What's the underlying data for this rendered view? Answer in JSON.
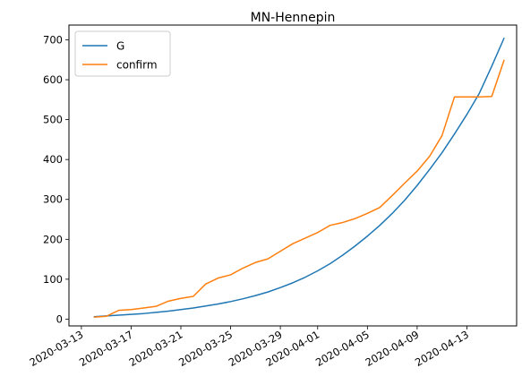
{
  "chart_data": {
    "type": "line",
    "title": "MN-Hennepin",
    "xlabel": "",
    "ylabel": "",
    "x_type": "date",
    "xlim": [
      "2020-03-12",
      "2020-04-17"
    ],
    "ylim": [
      -17,
      737
    ],
    "x_ticks": [
      "2020-03-13",
      "2020-03-17",
      "2020-03-21",
      "2020-03-25",
      "2020-03-29",
      "2020-04-01",
      "2020-04-05",
      "2020-04-09",
      "2020-04-13"
    ],
    "y_ticks": [
      0,
      100,
      200,
      300,
      400,
      500,
      600,
      700
    ],
    "grid": false,
    "legend": {
      "position": "top-left"
    },
    "series": [
      {
        "name": "G",
        "color": "#1f77b4",
        "x": [
          "2020-03-14",
          "2020-03-15",
          "2020-03-16",
          "2020-03-17",
          "2020-03-18",
          "2020-03-19",
          "2020-03-20",
          "2020-03-21",
          "2020-03-22",
          "2020-03-23",
          "2020-03-24",
          "2020-03-25",
          "2020-03-26",
          "2020-03-27",
          "2020-03-28",
          "2020-03-29",
          "2020-03-30",
          "2020-03-31",
          "2020-04-01",
          "2020-04-02",
          "2020-04-03",
          "2020-04-04",
          "2020-04-05",
          "2020-04-06",
          "2020-04-07",
          "2020-04-08",
          "2020-04-09",
          "2020-04-10",
          "2020-04-11",
          "2020-04-12",
          "2020-04-13",
          "2020-04-14",
          "2020-04-15",
          "2020-04-16"
        ],
        "values": [
          6,
          8,
          10,
          12,
          14,
          17,
          20,
          24,
          28,
          33,
          38,
          44,
          51,
          59,
          68,
          79,
          91,
          105,
          121,
          139,
          160,
          183,
          208,
          235,
          265,
          298,
          335,
          375,
          417,
          464,
          513,
          566,
          634,
          705
        ]
      },
      {
        "name": "confirm",
        "color": "#ff7f0e",
        "x": [
          "2020-03-14",
          "2020-03-15",
          "2020-03-16",
          "2020-03-17",
          "2020-03-18",
          "2020-03-19",
          "2020-03-20",
          "2020-03-21",
          "2020-03-22",
          "2020-03-23",
          "2020-03-24",
          "2020-03-25",
          "2020-03-26",
          "2020-03-27",
          "2020-03-28",
          "2020-03-29",
          "2020-03-30",
          "2020-03-31",
          "2020-04-01",
          "2020-04-02",
          "2020-04-03",
          "2020-04-04",
          "2020-04-05",
          "2020-04-06",
          "2020-04-07",
          "2020-04-08",
          "2020-04-09",
          "2020-04-10",
          "2020-04-11",
          "2020-04-12",
          "2020-04-13",
          "2020-04-14",
          "2020-04-15",
          "2020-04-16"
        ],
        "values": [
          5,
          7,
          22,
          24,
          28,
          32,
          45,
          52,
          57,
          88,
          103,
          111,
          128,
          142,
          151,
          170,
          189,
          203,
          217,
          235,
          242,
          252,
          265,
          280,
          310,
          341,
          371,
          408,
          460,
          557,
          557,
          557,
          558,
          650
        ]
      }
    ]
  }
}
